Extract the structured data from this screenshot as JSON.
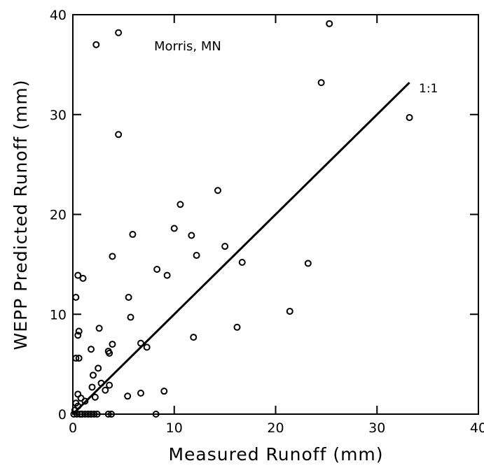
{
  "chart_data": {
    "type": "scatter",
    "title": "",
    "xlabel": "Measured Runoff (mm)",
    "ylabel": "WEPP Predicted Runoff (mm)",
    "xlim": [
      0,
      40
    ],
    "ylim": [
      0,
      40
    ],
    "xticks": [
      "0",
      "10",
      "20",
      "30",
      "40"
    ],
    "yticks": [
      "0",
      "10",
      "20",
      "30",
      "40"
    ],
    "grid": false,
    "legend": "none",
    "annotation": "Morris, MN",
    "reference_line": {
      "label": "1:1",
      "x": [
        0,
        33.2
      ],
      "y": [
        0,
        33.2
      ]
    },
    "marker": "open-circle",
    "color": "#000000",
    "series": [
      {
        "points": [
          [
            25.3,
            39.1
          ],
          [
            4.5,
            38.2
          ],
          [
            2.3,
            37.0
          ],
          [
            24.5,
            33.2
          ],
          [
            33.2,
            29.7
          ],
          [
            4.5,
            28.0
          ],
          [
            14.3,
            22.4
          ],
          [
            10.6,
            21.0
          ],
          [
            10.0,
            18.6
          ],
          [
            5.9,
            18.0
          ],
          [
            11.7,
            17.9
          ],
          [
            15.0,
            16.8
          ],
          [
            12.2,
            15.9
          ],
          [
            3.9,
            15.8
          ],
          [
            16.7,
            15.2
          ],
          [
            23.2,
            15.1
          ],
          [
            8.3,
            14.5
          ],
          [
            0.5,
            13.9
          ],
          [
            1.0,
            13.6
          ],
          [
            9.3,
            13.9
          ],
          [
            0.3,
            11.7
          ],
          [
            5.5,
            11.7
          ],
          [
            21.4,
            10.3
          ],
          [
            5.7,
            9.7
          ],
          [
            16.2,
            8.7
          ],
          [
            2.6,
            8.6
          ],
          [
            0.6,
            8.3
          ],
          [
            0.5,
            7.9
          ],
          [
            11.9,
            7.7
          ],
          [
            6.7,
            7.1
          ],
          [
            3.9,
            7.0
          ],
          [
            7.3,
            6.7
          ],
          [
            1.8,
            6.5
          ],
          [
            3.5,
            6.3
          ],
          [
            3.6,
            6.1
          ],
          [
            0.3,
            5.6
          ],
          [
            0.6,
            5.6
          ],
          [
            2.5,
            4.6
          ],
          [
            2.0,
            3.9
          ],
          [
            3.6,
            2.9
          ],
          [
            1.9,
            2.7
          ],
          [
            2.8,
            3.1
          ],
          [
            3.2,
            2.4
          ],
          [
            6.7,
            2.1
          ],
          [
            9.0,
            2.3
          ],
          [
            5.4,
            1.8
          ],
          [
            2.2,
            1.7
          ],
          [
            0.5,
            2.0
          ],
          [
            0.8,
            1.6
          ],
          [
            1.2,
            1.3
          ],
          [
            0.3,
            1.1
          ],
          [
            0.5,
            0.8
          ],
          [
            0.2,
            0.4
          ],
          [
            0.1,
            0.0
          ],
          [
            0.4,
            0.0
          ],
          [
            0.7,
            0.0
          ],
          [
            0.9,
            0.0
          ],
          [
            1.2,
            0.0
          ],
          [
            1.5,
            0.0
          ],
          [
            1.8,
            0.0
          ],
          [
            2.1,
            0.0
          ],
          [
            2.4,
            0.0
          ],
          [
            3.5,
            0.0
          ],
          [
            3.8,
            0.0
          ],
          [
            8.2,
            0.0
          ]
        ]
      }
    ]
  }
}
